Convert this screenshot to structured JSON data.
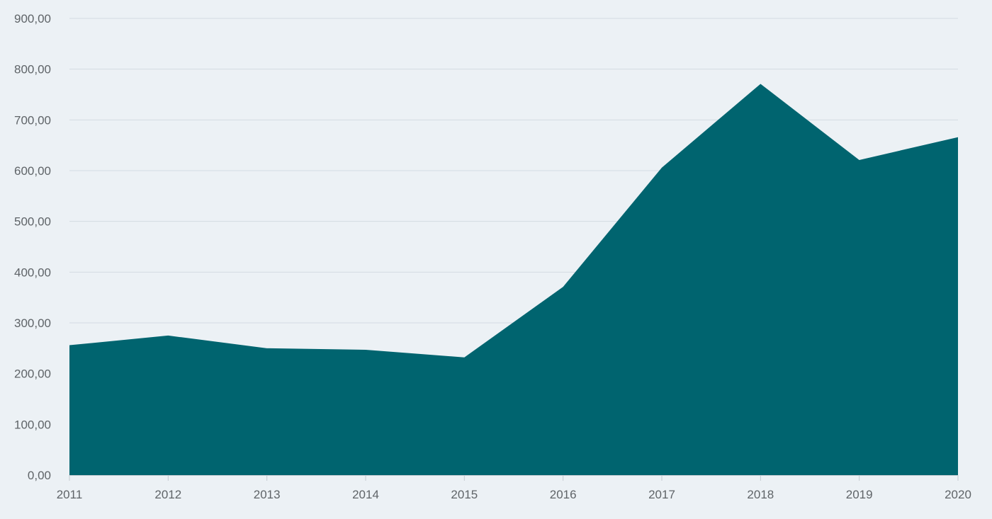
{
  "chart_data": {
    "type": "area",
    "title": "",
    "xlabel": "",
    "ylabel": "",
    "categories": [
      "2011",
      "2012",
      "2013",
      "2014",
      "2015",
      "2016",
      "2017",
      "2018",
      "2019",
      "2020"
    ],
    "values": [
      256,
      275,
      250,
      247,
      232,
      371,
      606,
      771,
      621,
      666
    ],
    "ylim": [
      0,
      900
    ],
    "yticks": [
      "0,00",
      "100,00",
      "200,00",
      "300,00",
      "400,00",
      "500,00",
      "600,00",
      "700,00",
      "800,00",
      "900,00"
    ],
    "grid": true,
    "legend": "none",
    "colors": {
      "background": "#ecf1f5",
      "area": "#00646f",
      "grid": "#d3dbe2",
      "axis": "#c4cbd1",
      "tick_text": "#5f6468"
    }
  }
}
